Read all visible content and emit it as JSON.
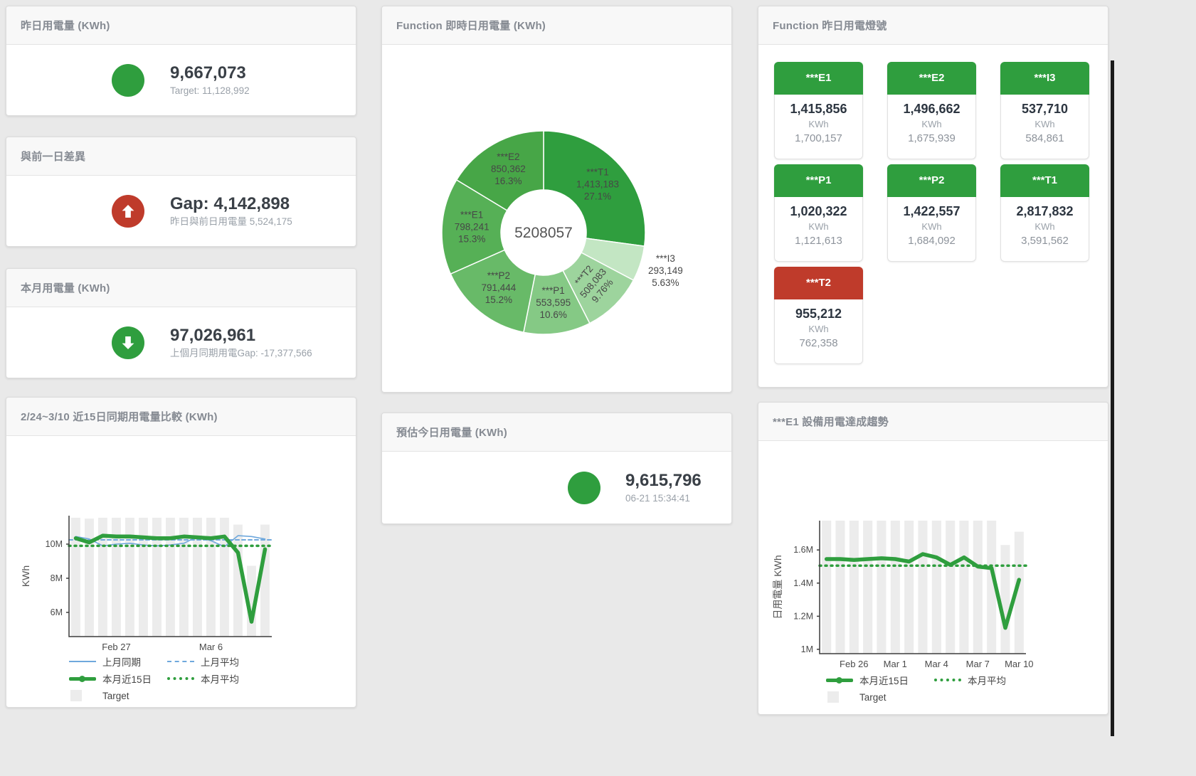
{
  "colors": {
    "accent_green": "#2f9e3e",
    "accent_red": "#bf3b2b",
    "blue_line": "#6fa8dc",
    "target_bar_gray": "#ececec"
  },
  "panels": {
    "yesterday": {
      "title": "昨日用電量 (KWh)",
      "value": "9,667,073",
      "subtitle": "Target: 11,128,992",
      "indicator_color": "#2f9e3e"
    },
    "gap": {
      "title": "與前一日差異",
      "value": "Gap: 4,142,898",
      "subtitle": "昨日與前日用電量 5,524,175",
      "indicator_color": "#bf3b2b"
    },
    "month": {
      "title": "本月用電量 (KWh)",
      "value": "97,026,961",
      "subtitle": "上個月同期用電Gap: -17,377,566",
      "indicator_color": "#2f9e3e"
    },
    "estimate": {
      "title": "預估今日用電量 (KWh)",
      "value": "9,615,796",
      "subtitle": "06-21 15:34:41",
      "indicator_color": "#2f9e3e"
    },
    "compare": {
      "title": "2/24~3/10 近15日同期用電量比較 (KWh)"
    },
    "donut": {
      "title": "Function 即時日用電量 (KWh)"
    },
    "lights": {
      "title": "Function 昨日用電燈號",
      "tiles": [
        {
          "label": "***E1",
          "value": "1,415,856",
          "unit": "KWh",
          "target": "1,700,157",
          "color": "#2f9e3e"
        },
        {
          "label": "***E2",
          "value": "1,496,662",
          "unit": "KWh",
          "target": "1,675,939",
          "color": "#2f9e3e"
        },
        {
          "label": "***I3",
          "value": "537,710",
          "unit": "KWh",
          "target": "584,861",
          "color": "#2f9e3e"
        },
        {
          "label": "***P1",
          "value": "1,020,322",
          "unit": "KWh",
          "target": "1,121,613",
          "color": "#2f9e3e"
        },
        {
          "label": "***P2",
          "value": "1,422,557",
          "unit": "KWh",
          "target": "1,684,092",
          "color": "#2f9e3e"
        },
        {
          "label": "***T1",
          "value": "2,817,832",
          "unit": "KWh",
          "target": "3,591,562",
          "color": "#2f9e3e"
        },
        {
          "label": "***T2",
          "value": "955,212",
          "unit": "KWh",
          "target": "762,358",
          "color": "#bf3b2b"
        }
      ]
    },
    "trend": {
      "title": "***E1 設備用電達成趨勢"
    }
  },
  "chart_data": [
    {
      "type": "pie",
      "title": "Function 即時日用電量 (KWh)",
      "center_total": "5208057",
      "legend_position": "none",
      "slices": [
        {
          "name": "***T1",
          "value": 1413183,
          "value_label": "1,413,183",
          "pct": "27.1%",
          "color": "#2f9e3e",
          "label_pos": "inside"
        },
        {
          "name": "***I3",
          "value": 293149,
          "value_label": "293,149",
          "pct": "5.63%",
          "color": "#c3e6c3",
          "label_pos": "outside"
        },
        {
          "name": "***T2",
          "value": 508083,
          "value_label": "508,083",
          "pct": "9.76%",
          "color": "#9dd49d",
          "label_pos": "inside",
          "label_rotate": -50
        },
        {
          "name": "***P1",
          "value": 553595,
          "value_label": "553,595",
          "pct": "10.6%",
          "color": "#85c985",
          "label_pos": "inside"
        },
        {
          "name": "***P2",
          "value": 791444,
          "value_label": "791,444",
          "pct": "15.2%",
          "color": "#68ba68",
          "label_pos": "inside"
        },
        {
          "name": "***E1",
          "value": 798241,
          "value_label": "798,241",
          "pct": "15.3%",
          "color": "#56b056",
          "label_pos": "inside"
        },
        {
          "name": "***E2",
          "value": 850362,
          "value_label": "850,362",
          "pct": "16.3%",
          "color": "#47a647",
          "label_pos": "inside"
        }
      ]
    },
    {
      "type": "line",
      "title": "2/24~3/10 近15日同期用電量比較 (KWh)",
      "ylabel": "KWh",
      "ylim": [
        4.58,
        11.67
      ],
      "grid": false,
      "legend_position": "bottom",
      "yticks": [
        {
          "v": 6,
          "label": "6M"
        },
        {
          "v": 8,
          "label": "8M"
        },
        {
          "v": 10,
          "label": "10M"
        }
      ],
      "xticks": [
        {
          "i": 3,
          "label": "Feb 27"
        },
        {
          "i": 10,
          "label": "Mar 6"
        }
      ],
      "n": 15,
      "bars": {
        "name": "Target",
        "color": "#ececec",
        "values": [
          11.55,
          11.5,
          11.55,
          11.55,
          11.55,
          11.55,
          11.55,
          11.55,
          11.55,
          11.55,
          11.55,
          11.55,
          11.15,
          8.73,
          11.15
        ]
      },
      "series": [
        {
          "name": "上月同期",
          "color": "#6fa8dc",
          "width": 1.6,
          "values": [
            10.45,
            10.3,
            9.9,
            10.0,
            10.05,
            9.95,
            9.9,
            9.95,
            10.05,
            10.45,
            10.2,
            9.85,
            10.5,
            10.45,
            10.3
          ]
        },
        {
          "name": "上月平均",
          "color": "#6fa8dc",
          "width": 2,
          "dash": "5,4",
          "avg": 10.25
        },
        {
          "name": "本月近15日",
          "color": "#2f9e3e",
          "width": 5.5,
          "values": [
            10.35,
            10.1,
            10.5,
            10.45,
            10.45,
            10.4,
            10.35,
            10.35,
            10.45,
            10.4,
            10.35,
            10.45,
            9.5,
            5.45,
            9.7
          ]
        },
        {
          "name": "本月平均",
          "color": "#2f9e3e",
          "width": 3.5,
          "dash": "2,6",
          "avg": 9.9
        }
      ],
      "legend": [
        {
          "label": "上月同期",
          "swatch": "line",
          "color": "#6fa8dc"
        },
        {
          "label": "上月平均",
          "swatch": "dash",
          "color": "#6fa8dc"
        },
        {
          "label": "本月近15日",
          "swatch": "thick",
          "color": "#2f9e3e"
        },
        {
          "label": "本月平均",
          "swatch": "dots",
          "color": "#2f9e3e"
        },
        {
          "label": "Target",
          "swatch": "square",
          "color": "#ececec"
        }
      ]
    },
    {
      "type": "line",
      "title": "***E1 設備用電達成趨勢",
      "ylabel": "日用電量 KWh",
      "ylim": [
        0.974,
        1.777
      ],
      "grid": false,
      "legend_position": "bottom",
      "yticks": [
        {
          "v": 1,
          "label": "1M"
        },
        {
          "v": 1.2,
          "label": "1.2M"
        },
        {
          "v": 1.4,
          "label": "1.4M"
        },
        {
          "v": 1.6,
          "label": "1.6M"
        }
      ],
      "xticks": [
        {
          "i": 2,
          "label": "Feb 26"
        },
        {
          "i": 5,
          "label": "Mar 1"
        },
        {
          "i": 8,
          "label": "Mar 4"
        },
        {
          "i": 11,
          "label": "Mar 7"
        },
        {
          "i": 14,
          "label": "Mar 10"
        }
      ],
      "n": 15,
      "bars": {
        "name": "Target",
        "color": "#ececec",
        "values": [
          1.78,
          1.78,
          1.78,
          1.78,
          1.78,
          1.78,
          1.78,
          1.78,
          1.78,
          1.78,
          1.78,
          1.78,
          1.78,
          1.63,
          1.71
        ]
      },
      "series": [
        {
          "name": "本月近15日",
          "color": "#2f9e3e",
          "width": 5.5,
          "values": [
            1.545,
            1.545,
            1.54,
            1.545,
            1.55,
            1.545,
            1.53,
            1.575,
            1.555,
            1.51,
            1.555,
            1.5,
            1.49,
            1.13,
            1.42
          ]
        },
        {
          "name": "本月平均",
          "color": "#2f9e3e",
          "width": 3.5,
          "dash": "2,6",
          "avg": 1.505
        }
      ],
      "legend": [
        {
          "label": "本月近15日",
          "swatch": "thick",
          "color": "#2f9e3e"
        },
        {
          "label": "本月平均",
          "swatch": "dots",
          "color": "#2f9e3e"
        },
        {
          "label": "Target",
          "swatch": "square",
          "color": "#ececec"
        }
      ]
    }
  ]
}
